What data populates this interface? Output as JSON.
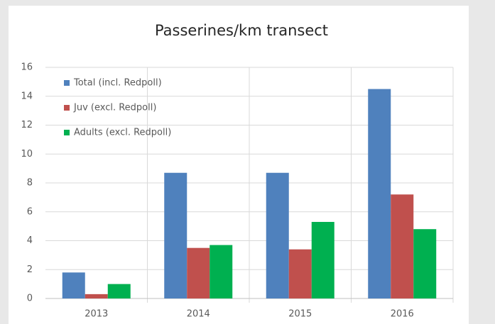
{
  "chart_data": {
    "type": "bar",
    "title": "Passerines/km  transect",
    "categories": [
      "2013",
      "2014",
      "2015",
      "2016"
    ],
    "series": [
      {
        "name": "Total (incl. Redpoll)",
        "color": "#4f81bd",
        "values": [
          1.8,
          8.7,
          8.7,
          14.5
        ]
      },
      {
        "name": "Juv (excl. Redpoll)",
        "color": "#c0504d",
        "values": [
          0.3,
          3.5,
          3.4,
          7.2
        ]
      },
      {
        "name": "Adults (excl. Redpoll)",
        "color": "#00b050",
        "values": [
          1.0,
          3.7,
          5.3,
          4.8
        ]
      }
    ],
    "ylim": [
      0,
      16
    ],
    "yticks": [
      0,
      2,
      4,
      6,
      8,
      10,
      12,
      14,
      16
    ],
    "grid": true,
    "legend": "top-left"
  }
}
